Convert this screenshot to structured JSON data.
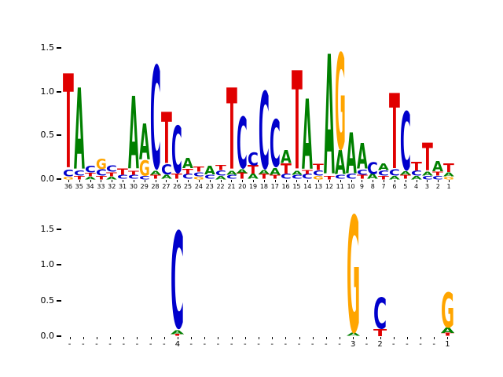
{
  "figure": {
    "background": "#ffffff"
  },
  "colors": {
    "A": "#008000",
    "C": "#0000cc",
    "G": "#ffa500",
    "T": "#e00000"
  },
  "chart_data": [
    {
      "type": "bar",
      "subtype": "sequence_logo",
      "title": "",
      "xlabel": "",
      "ylabel": "",
      "yticks": [
        0.0,
        0.5,
        1.0,
        1.5
      ],
      "ylim": [
        0,
        1.6
      ],
      "grid": false,
      "positions": [
        "36",
        "35",
        "34",
        "33",
        "32",
        "31",
        "30",
        "29",
        "28",
        "27",
        "26",
        "25",
        "24",
        "23",
        "22",
        "21",
        "20",
        "19",
        "18",
        "17",
        "16",
        "15",
        "14",
        "13",
        "12",
        "11",
        "10",
        "9",
        "8",
        "7",
        "6",
        "5",
        "4",
        "3",
        "2",
        "1"
      ],
      "stacks": [
        [
          [
            "G",
            0.03
          ],
          [
            "C",
            0.08
          ],
          [
            "T",
            1.1
          ]
        ],
        [
          [
            "T",
            0.04
          ],
          [
            "C",
            0.06
          ],
          [
            "A",
            0.95
          ]
        ],
        [
          [
            "A",
            0.03
          ],
          [
            "T",
            0.04
          ],
          [
            "C",
            0.08
          ]
        ],
        [
          [
            "T",
            0.04
          ],
          [
            "C",
            0.07
          ],
          [
            "G",
            0.12
          ]
        ],
        [
          [
            "A",
            0.03
          ],
          [
            "T",
            0.05
          ],
          [
            "C",
            0.07
          ]
        ],
        [
          [
            "C",
            0.05
          ],
          [
            "T",
            0.07
          ]
        ],
        [
          [
            "C",
            0.05
          ],
          [
            "T",
            0.05
          ],
          [
            "A",
            0.85
          ]
        ],
        [
          [
            "C",
            0.04
          ],
          [
            "G",
            0.18
          ],
          [
            "A",
            0.42
          ]
        ],
        [
          [
            "T",
            0.05
          ],
          [
            "A",
            0.05
          ],
          [
            "C",
            1.2
          ]
        ],
        [
          [
            "A",
            0.05
          ],
          [
            "C",
            0.12
          ],
          [
            "T",
            0.6
          ]
        ],
        [
          [
            "T",
            0.06
          ],
          [
            "C",
            0.55
          ]
        ],
        [
          [
            "C",
            0.06
          ],
          [
            "T",
            0.06
          ],
          [
            "A",
            0.12
          ]
        ],
        [
          [
            "G",
            0.03
          ],
          [
            "C",
            0.05
          ],
          [
            "T",
            0.06
          ]
        ],
        [
          [
            "C",
            0.05
          ],
          [
            "A",
            0.1
          ]
        ],
        [
          [
            "A",
            0.04
          ],
          [
            "C",
            0.06
          ],
          [
            "T",
            0.06
          ]
        ],
        [
          [
            "C",
            0.05
          ],
          [
            "A",
            0.05
          ],
          [
            "T",
            0.95
          ]
        ],
        [
          [
            "T",
            0.07
          ],
          [
            "A",
            0.05
          ],
          [
            "C",
            0.6
          ]
        ],
        [
          [
            "A",
            0.06
          ],
          [
            "T",
            0.1
          ],
          [
            "C",
            0.15
          ]
        ],
        [
          [
            "T",
            0.06
          ],
          [
            "A",
            0.05
          ],
          [
            "C",
            0.9
          ]
        ],
        [
          [
            "T",
            0.05
          ],
          [
            "A",
            0.08
          ],
          [
            "C",
            0.55
          ]
        ],
        [
          [
            "C",
            0.06
          ],
          [
            "T",
            0.12
          ],
          [
            "A",
            0.15
          ]
        ],
        [
          [
            "C",
            0.05
          ],
          [
            "A",
            0.05
          ],
          [
            "T",
            1.15
          ]
        ],
        [
          [
            "C",
            0.06
          ],
          [
            "T",
            0.05
          ],
          [
            "A",
            0.82
          ]
        ],
        [
          [
            "G",
            0.04
          ],
          [
            "C",
            0.06
          ],
          [
            "T",
            0.07
          ]
        ],
        [
          [
            "T",
            0.04
          ],
          [
            "A",
            1.4
          ]
        ],
        [
          [
            "C",
            0.05
          ],
          [
            "A",
            0.28
          ],
          [
            "G",
            1.12
          ]
        ],
        [
          [
            "C",
            0.06
          ],
          [
            "A",
            0.48
          ]
        ],
        [
          [
            "T",
            0.05
          ],
          [
            "C",
            0.06
          ],
          [
            "A",
            0.3
          ]
        ],
        [
          [
            "A",
            0.06
          ],
          [
            "C",
            0.14
          ]
        ],
        [
          [
            "T",
            0.04
          ],
          [
            "C",
            0.06
          ],
          [
            "A",
            0.08
          ]
        ],
        [
          [
            "A",
            0.04
          ],
          [
            "C",
            0.07
          ],
          [
            "T",
            0.88
          ]
        ],
        [
          [
            "T",
            0.05
          ],
          [
            "A",
            0.04
          ],
          [
            "C",
            0.68
          ]
        ],
        [
          [
            "A",
            0.04
          ],
          [
            "C",
            0.06
          ],
          [
            "T",
            0.1
          ]
        ],
        [
          [
            "C",
            0.04
          ],
          [
            "A",
            0.05
          ],
          [
            "T",
            0.32
          ]
        ],
        [
          [
            "C",
            0.04
          ],
          [
            "T",
            0.05
          ],
          [
            "A",
            0.12
          ]
        ],
        [
          [
            "G",
            0.03
          ],
          [
            "A",
            0.05
          ],
          [
            "T",
            0.1
          ]
        ]
      ]
    },
    {
      "type": "bar",
      "subtype": "sequence_logo",
      "title": "",
      "xlabel": "",
      "ylabel": "",
      "yticks": [
        0.0,
        0.5,
        1.0,
        1.5
      ],
      "ylim": [
        0,
        1.75
      ],
      "grid": false,
      "positions": [
        "-",
        "-",
        "-",
        "-",
        "-",
        "-",
        "-",
        "-",
        "4",
        "-",
        "-",
        "-",
        "-",
        "-",
        "-",
        "-",
        "-",
        "-",
        "-",
        "-",
        "-",
        "3",
        "-",
        "2",
        "-",
        "-",
        "-",
        "-",
        "1"
      ],
      "stacks": [
        [],
        [],
        [],
        [],
        [],
        [],
        [],
        [],
        [
          [
            "T",
            0.03
          ],
          [
            "A",
            0.06
          ],
          [
            "C",
            1.38
          ]
        ],
        [],
        [],
        [],
        [],
        [],
        [],
        [],
        [],
        [],
        [],
        [],
        [],
        [
          [
            "A",
            0.04
          ],
          [
            "G",
            1.66
          ]
        ],
        [],
        [
          [
            "T",
            0.1
          ],
          [
            "C",
            0.45
          ]
        ],
        [],
        [],
        [],
        [],
        [
          [
            "T",
            0.04
          ],
          [
            "A",
            0.08
          ],
          [
            "G",
            0.5
          ]
        ]
      ]
    }
  ]
}
